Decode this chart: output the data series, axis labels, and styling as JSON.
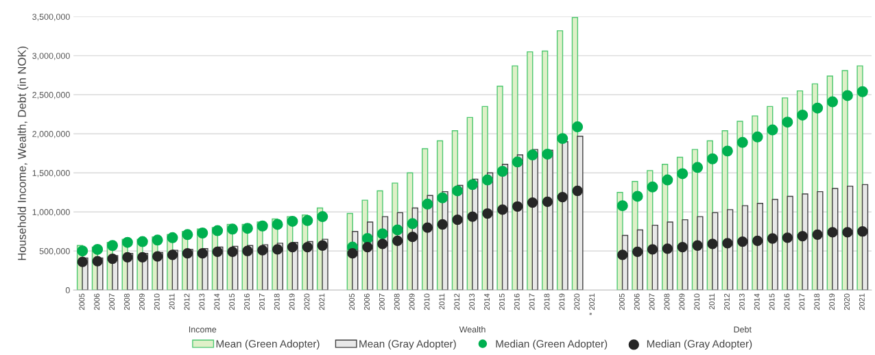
{
  "chart_data": {
    "type": "bar",
    "ylabel": "Household Income, Wealth, Debt (in NOK)",
    "categories": [
      "2005",
      "2006",
      "2007",
      "2008",
      "2009",
      "2010",
      "2011",
      "2012",
      "2013",
      "2014",
      "2015",
      "2016",
      "2017",
      "2018",
      "2019",
      "2020",
      "2021",
      null,
      "2005",
      "2006",
      "2007",
      "2008",
      "2009",
      "2010",
      "2011",
      "2012",
      "2013",
      "2014",
      "2015",
      "2016",
      "2017",
      "2018",
      "2019",
      "2020",
      "* 2021",
      null,
      "2005",
      "2006",
      "2007",
      "2008",
      "2009",
      "2010",
      "2011",
      "2012",
      "2013",
      "2014",
      "2015",
      "2016",
      "2017",
      "2018",
      "2019",
      "2020",
      "2021"
    ],
    "annotations": [
      "Income",
      "Wealth",
      "Debt"
    ],
    "ylim": [
      0,
      3500000
    ],
    "yticks": [
      {
        "value": 0,
        "label": "0"
      },
      {
        "value": 500000,
        "label": "500,000"
      },
      {
        "value": 1000000,
        "label": "1,000,000"
      },
      {
        "value": 1500000,
        "label": "1,500,000"
      },
      {
        "value": 2000000,
        "label": "2,000,000"
      },
      {
        "value": 2500000,
        "label": "2,500,000"
      },
      {
        "value": 3000000,
        "label": "3,000,000"
      },
      {
        "value": 3500000,
        "label": "3,500,000"
      }
    ],
    "grid": "y",
    "legend": "bottom",
    "series": [
      {
        "name": "Mean (Green Adopter)",
        "color": "#dff0c8",
        "values": [
          570000,
          550000,
          610000,
          650000,
          650000,
          680000,
          710000,
          750000,
          780000,
          800000,
          840000,
          840000,
          870000,
          910000,
          940000,
          960000,
          1050000,
          null,
          980000,
          1150000,
          1270000,
          1370000,
          1500000,
          1810000,
          1910000,
          2040000,
          2210000,
          2350000,
          2610000,
          2870000,
          3050000,
          3060000,
          3320000,
          3490000,
          null,
          null,
          1250000,
          1390000,
          1530000,
          1610000,
          1700000,
          1800000,
          1910000,
          2040000,
          2160000,
          2230000,
          2350000,
          2460000,
          2550000,
          2640000,
          2740000,
          2810000,
          2870000
        ]
      },
      {
        "name": "Mean (Gray Adopter)",
        "color": "#e8e8e8",
        "values": [
          410000,
          410000,
          440000,
          470000,
          470000,
          480000,
          510000,
          520000,
          530000,
          550000,
          560000,
          570000,
          580000,
          600000,
          610000,
          620000,
          650000,
          null,
          750000,
          870000,
          940000,
          990000,
          1050000,
          1210000,
          1260000,
          1340000,
          1420000,
          1500000,
          1610000,
          1730000,
          1800000,
          1790000,
          1900000,
          1970000,
          null,
          null,
          700000,
          770000,
          830000,
          870000,
          900000,
          940000,
          990000,
          1030000,
          1080000,
          1110000,
          1160000,
          1200000,
          1230000,
          1260000,
          1300000,
          1330000,
          1350000
        ]
      },
      {
        "name": "Median (Green Adopter)",
        "type": "scatter",
        "color": "#00b050",
        "marker": "circle",
        "values": [
          500000,
          520000,
          570000,
          610000,
          620000,
          640000,
          670000,
          710000,
          730000,
          760000,
          780000,
          790000,
          820000,
          840000,
          880000,
          890000,
          940000,
          null,
          550000,
          660000,
          720000,
          770000,
          850000,
          1100000,
          1180000,
          1270000,
          1350000,
          1410000,
          1520000,
          1640000,
          1730000,
          1740000,
          1940000,
          2090000,
          null,
          null,
          1080000,
          1200000,
          1320000,
          1410000,
          1490000,
          1570000,
          1680000,
          1780000,
          1890000,
          1960000,
          2050000,
          2150000,
          2240000,
          2330000,
          2410000,
          2490000,
          2540000
        ]
      },
      {
        "name": "Median (Gray Adopter)",
        "type": "scatter",
        "color": "#262626",
        "marker": "circle",
        "values": [
          360000,
          370000,
          400000,
          420000,
          420000,
          430000,
          450000,
          470000,
          470000,
          490000,
          490000,
          500000,
          510000,
          520000,
          550000,
          550000,
          570000,
          null,
          470000,
          550000,
          590000,
          630000,
          680000,
          800000,
          840000,
          900000,
          940000,
          980000,
          1030000,
          1070000,
          1120000,
          1130000,
          1190000,
          1270000,
          null,
          null,
          450000,
          490000,
          520000,
          530000,
          550000,
          570000,
          590000,
          600000,
          620000,
          630000,
          660000,
          670000,
          690000,
          710000,
          740000,
          740000,
          750000
        ]
      }
    ]
  }
}
